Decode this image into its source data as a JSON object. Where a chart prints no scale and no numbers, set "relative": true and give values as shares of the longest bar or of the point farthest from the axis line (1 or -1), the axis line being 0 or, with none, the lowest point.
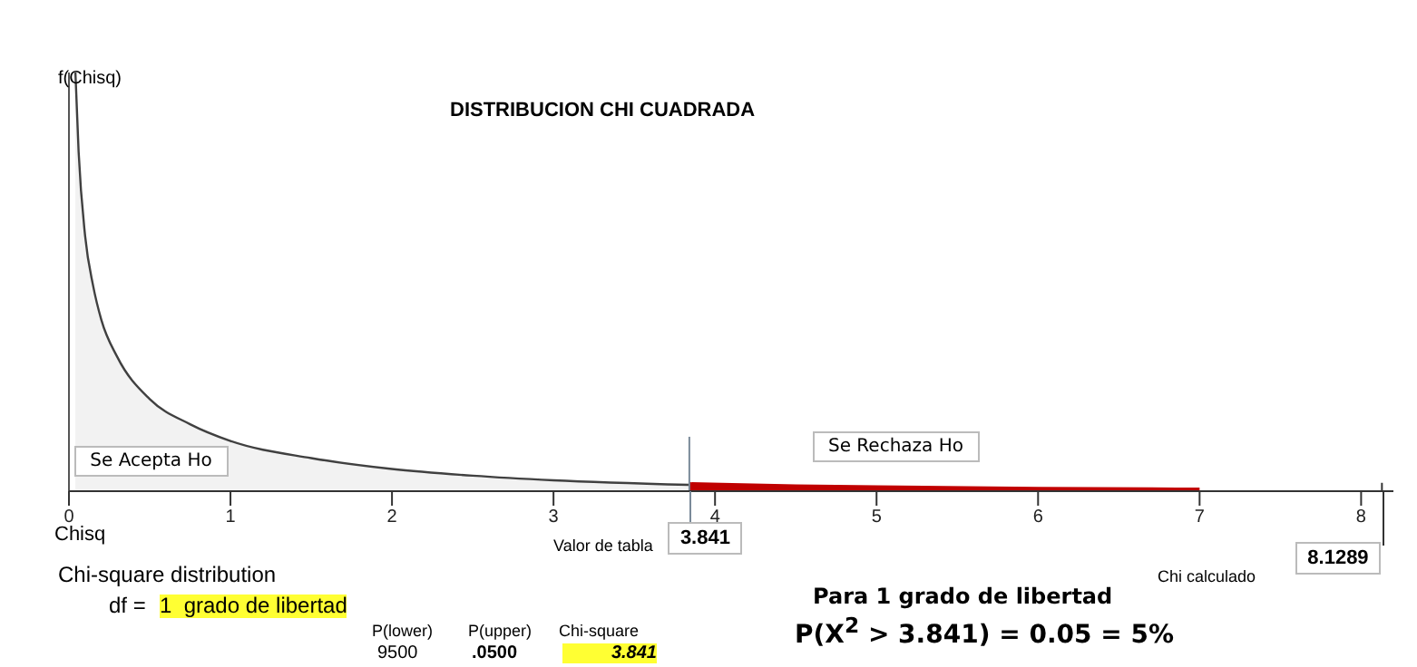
{
  "chart_data": {
    "type": "area",
    "title": "DISTRIBUCION CHI CUADRADA",
    "xlabel": "Chisq",
    "ylabel": "f(Chisq)",
    "relative": true,
    "xlim": [
      0,
      8.2
    ],
    "xticks": [
      0,
      1,
      2,
      3,
      4,
      5,
      6,
      7,
      8
    ],
    "series": [
      {
        "color": "#f2f2f2",
        "x": [
          0.04,
          0.06,
          0.1,
          0.15,
          0.2,
          0.3,
          0.5,
          0.75,
          1,
          1.5,
          2,
          2.5,
          3,
          3.841
        ],
        "values": [
          1,
          0.81,
          0.61,
          0.49,
          0.41,
          0.32,
          0.22,
          0.16,
          0.12,
          0.079,
          0.053,
          0.037,
          0.026,
          0.015
        ]
      },
      {
        "color": "#c00000",
        "x": [
          3.841,
          4.5,
          5,
          6,
          7
        ],
        "values": [
          0.015,
          0.01,
          0.0075,
          0.004,
          0.002
        ]
      }
    ],
    "ref_lines": [
      {
        "axis": "x",
        "value": 3.841,
        "label": "3.841"
      },
      {
        "axis": "x",
        "value": 8.1289,
        "label": "8.1289"
      }
    ],
    "annotations": [
      "Se Acepta Ho",
      "Se Rechaza Ho",
      "Valor de tabla",
      "Chi calculado",
      "Chi-square distribution",
      "df = ",
      "1  grado de libertad",
      "P(lower)",
      "P(upper)",
      "Chi-square",
      "9500",
      ".0500",
      "3.841",
      "Para 1 grado de libertad",
      "P(X$^{2}$ > 3.841) = 0.05 = 5%"
    ],
    "legend": false,
    "grid": false
  }
}
